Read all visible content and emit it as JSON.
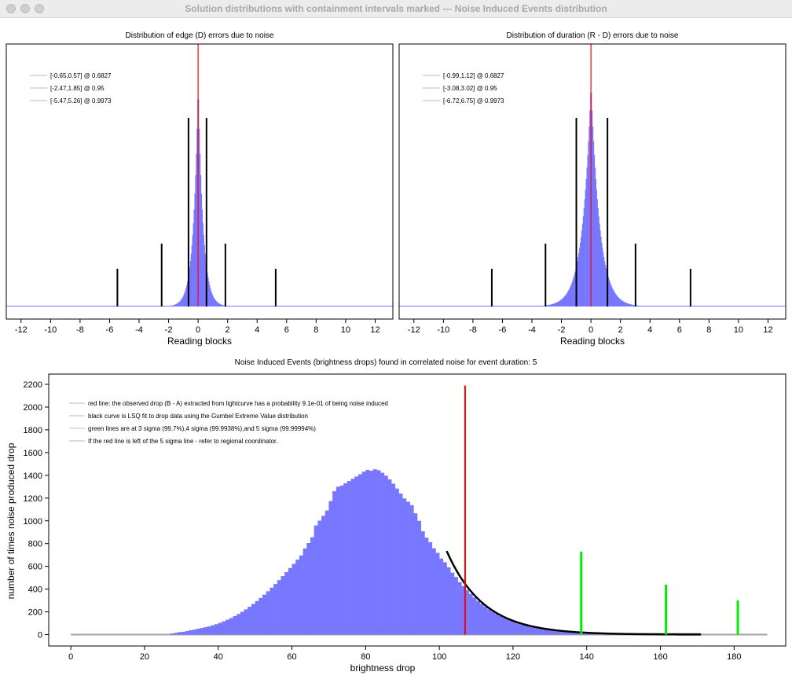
{
  "window": {
    "title": "Solution distributions with containment intervals marked --- Noise Induced Events distribution"
  },
  "colors": {
    "histogram": "#7777ff",
    "observed_line": "#ff0000",
    "interval_lines": "#000000",
    "sigma_lines": "#00ee00",
    "fit_curve": "#000000"
  },
  "chart_data": [
    {
      "id": "edge",
      "type": "bar",
      "title": "Distribution of edge (D) errors due to noise",
      "xlabel": "Reading blocks",
      "ylabel": "",
      "xlim": [
        -13,
        13.2
      ],
      "xticks": [
        -12,
        -10,
        -8,
        -6,
        -4,
        -2,
        0,
        2,
        4,
        6,
        8,
        10,
        12
      ],
      "center": 0,
      "width": 0.33,
      "red_line_x": 0,
      "legend": [
        "[-0.65,0.57] @ 0.6827",
        "[-2.47,1.85] @ 0.95",
        "[-5.47,5.26] @ 0.9973"
      ],
      "legend_position": "top-left",
      "intervals": [
        {
          "confidence": 0.6827,
          "low": -0.65,
          "high": 0.57
        },
        {
          "confidence": 0.95,
          "low": -2.47,
          "high": 1.85
        },
        {
          "confidence": 0.9973,
          "low": -5.47,
          "high": 5.26
        }
      ]
    },
    {
      "id": "duration",
      "type": "bar",
      "title": "Distribution of duration (R - D) errors due to noise",
      "xlabel": "Reading blocks",
      "ylabel": "",
      "xlim": [
        -13,
        13.2
      ],
      "xticks": [
        -12,
        -10,
        -8,
        -6,
        -4,
        -2,
        0,
        2,
        4,
        6,
        8,
        10,
        12
      ],
      "center": 0,
      "width": 0.58,
      "red_line_x": 0,
      "legend": [
        "[-0.99,1.12] @ 0.6827",
        "[-3.08,3.02] @ 0.95",
        "[-6.72,6.75] @ 0.9973"
      ],
      "legend_position": "top-left",
      "intervals": [
        {
          "confidence": 0.6827,
          "low": -0.99,
          "high": 1.12
        },
        {
          "confidence": 0.95,
          "low": -3.08,
          "high": 3.02
        },
        {
          "confidence": 0.9973,
          "low": -6.72,
          "high": 6.75
        }
      ]
    },
    {
      "id": "noise_events",
      "type": "bar",
      "title": "Noise Induced Events (brightness drops) found in correlated noise for event duration: 5",
      "xlabel": "brightness drop",
      "ylabel": "number of times noise produced drop",
      "xlim": [
        -6,
        194
      ],
      "ylim": [
        -100,
        2290
      ],
      "xticks": [
        0,
        20,
        40,
        60,
        80,
        100,
        120,
        140,
        160,
        180
      ],
      "yticks": [
        0,
        200,
        400,
        600,
        800,
        1000,
        1200,
        1400,
        1600,
        1800,
        2000,
        2200
      ],
      "bins": [
        {
          "x": 27,
          "y": 10
        },
        {
          "x": 28,
          "y": 16
        },
        {
          "x": 29,
          "y": 22
        },
        {
          "x": 30,
          "y": 25
        },
        {
          "x": 31,
          "y": 31
        },
        {
          "x": 32,
          "y": 38
        },
        {
          "x": 33,
          "y": 44
        },
        {
          "x": 34,
          "y": 52
        },
        {
          "x": 35,
          "y": 58
        },
        {
          "x": 36,
          "y": 65
        },
        {
          "x": 37,
          "y": 72
        },
        {
          "x": 38,
          "y": 82
        },
        {
          "x": 39,
          "y": 92
        },
        {
          "x": 40,
          "y": 104
        },
        {
          "x": 41,
          "y": 117
        },
        {
          "x": 42,
          "y": 131
        },
        {
          "x": 43,
          "y": 146
        },
        {
          "x": 44,
          "y": 163
        },
        {
          "x": 45,
          "y": 181
        },
        {
          "x": 46,
          "y": 201
        },
        {
          "x": 47,
          "y": 222
        },
        {
          "x": 48,
          "y": 245
        },
        {
          "x": 49,
          "y": 269
        },
        {
          "x": 50,
          "y": 295
        },
        {
          "x": 51,
          "y": 322
        },
        {
          "x": 52,
          "y": 351
        },
        {
          "x": 53,
          "y": 381
        },
        {
          "x": 54,
          "y": 413
        },
        {
          "x": 55,
          "y": 445
        },
        {
          "x": 56,
          "y": 479
        },
        {
          "x": 57,
          "y": 514
        },
        {
          "x": 58,
          "y": 549
        },
        {
          "x": 59,
          "y": 585
        },
        {
          "x": 60,
          "y": 622
        },
        {
          "x": 61,
          "y": 659
        },
        {
          "x": 62,
          "y": 696
        },
        {
          "x": 63,
          "y": 757
        },
        {
          "x": 64,
          "y": 805
        },
        {
          "x": 65,
          "y": 856
        },
        {
          "x": 66,
          "y": 960
        },
        {
          "x": 67,
          "y": 1002
        },
        {
          "x": 68,
          "y": 1044
        },
        {
          "x": 69,
          "y": 1091
        },
        {
          "x": 70,
          "y": 1174
        },
        {
          "x": 71,
          "y": 1260
        },
        {
          "x": 72,
          "y": 1300
        },
        {
          "x": 73,
          "y": 1310
        },
        {
          "x": 74,
          "y": 1330
        },
        {
          "x": 75,
          "y": 1350
        },
        {
          "x": 76,
          "y": 1370
        },
        {
          "x": 77,
          "y": 1390
        },
        {
          "x": 78,
          "y": 1410
        },
        {
          "x": 79,
          "y": 1432
        },
        {
          "x": 80,
          "y": 1448
        },
        {
          "x": 81,
          "y": 1440
        },
        {
          "x": 82,
          "y": 1453
        },
        {
          "x": 83,
          "y": 1445
        },
        {
          "x": 84,
          "y": 1423
        },
        {
          "x": 85,
          "y": 1398
        },
        {
          "x": 86,
          "y": 1364
        },
        {
          "x": 87,
          "y": 1327
        },
        {
          "x": 88,
          "y": 1284
        },
        {
          "x": 89,
          "y": 1240
        },
        {
          "x": 90,
          "y": 1197
        },
        {
          "x": 91,
          "y": 1168
        },
        {
          "x": 92,
          "y": 1138
        },
        {
          "x": 93,
          "y": 1066
        },
        {
          "x": 94,
          "y": 1000
        },
        {
          "x": 95,
          "y": 908
        },
        {
          "x": 96,
          "y": 852
        },
        {
          "x": 97,
          "y": 812
        },
        {
          "x": 98,
          "y": 759
        },
        {
          "x": 99,
          "y": 719
        },
        {
          "x": 100,
          "y": 669
        },
        {
          "x": 101,
          "y": 636
        },
        {
          "x": 102,
          "y": 592
        },
        {
          "x": 103,
          "y": 545
        },
        {
          "x": 104,
          "y": 506
        },
        {
          "x": 105,
          "y": 462
        },
        {
          "x": 106,
          "y": 426
        },
        {
          "x": 107,
          "y": 390
        },
        {
          "x": 108,
          "y": 357
        },
        {
          "x": 109,
          "y": 326
        },
        {
          "x": 110,
          "y": 297
        },
        {
          "x": 111,
          "y": 270
        },
        {
          "x": 112,
          "y": 245
        },
        {
          "x": 113,
          "y": 222
        },
        {
          "x": 114,
          "y": 201
        },
        {
          "x": 115,
          "y": 182
        },
        {
          "x": 116,
          "y": 164
        },
        {
          "x": 117,
          "y": 148
        },
        {
          "x": 118,
          "y": 133
        },
        {
          "x": 119,
          "y": 119
        },
        {
          "x": 120,
          "y": 107
        },
        {
          "x": 121,
          "y": 96
        },
        {
          "x": 122,
          "y": 86
        },
        {
          "x": 123,
          "y": 77
        },
        {
          "x": 124,
          "y": 69
        },
        {
          "x": 125,
          "y": 61
        },
        {
          "x": 126,
          "y": 54
        },
        {
          "x": 127,
          "y": 48
        },
        {
          "x": 128,
          "y": 43
        },
        {
          "x": 129,
          "y": 38
        },
        {
          "x": 130,
          "y": 34
        },
        {
          "x": 131,
          "y": 30
        },
        {
          "x": 132,
          "y": 26
        },
        {
          "x": 133,
          "y": 23
        },
        {
          "x": 134,
          "y": 20
        },
        {
          "x": 135,
          "y": 17
        },
        {
          "x": 136,
          "y": 15
        },
        {
          "x": 137,
          "y": 13
        },
        {
          "x": 138,
          "y": 11
        },
        {
          "x": 139,
          "y": 9
        },
        {
          "x": 140,
          "y": 8
        },
        {
          "x": 141,
          "y": 7
        },
        {
          "x": 142,
          "y": 6
        },
        {
          "x": 143,
          "y": 5
        },
        {
          "x": 144,
          "y": 4
        }
      ],
      "baseline_range": [
        0,
        189
      ],
      "red_line": {
        "x": 107,
        "y": 2190
      },
      "green_lines": [
        {
          "x": 138.5,
          "y": 730
        },
        {
          "x": 161.5,
          "y": 440
        },
        {
          "x": 181,
          "y": 300
        }
      ],
      "fit_curve": {
        "x_start": 102,
        "x_end": 171,
        "y_start": 735,
        "decay": 0.1
      },
      "legend": [
        "red line: the observed drop (B - A) extracted from lightcurve has a probability 9.1e-01 of being noise induced",
        "black curve is LSQ fit to drop data using the Gumbel Extreme Value distribution",
        "green lines are at 3 sigma (99.7%),4 sigma (99.9938%),and 5 sigma (99.99994%)",
        "If the red line is left of the 5 sigma line - refer to regional coordinator."
      ],
      "legend_position": "top-left"
    }
  ]
}
